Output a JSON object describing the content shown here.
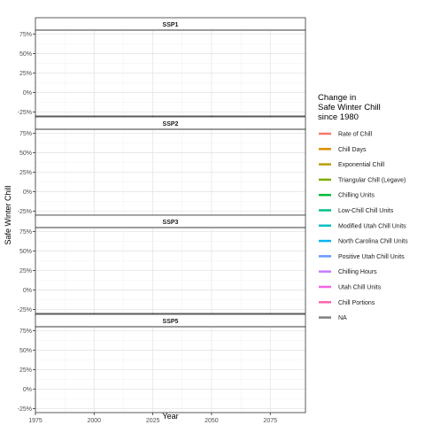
{
  "chart_data": {
    "type": "line",
    "facets": [
      "SSP1",
      "SSP2",
      "SSP3",
      "SSP5"
    ],
    "xlabel": "Year",
    "ylabel": "Safe Winter Chill",
    "x_ticks": [
      1975,
      2000,
      2025,
      2050,
      2075
    ],
    "xlim": [
      1975,
      2090
    ],
    "y_ticks": [
      -0.25,
      0,
      0.25,
      0.5,
      0.75
    ],
    "y_tick_labels": [
      "-25%",
      "0%",
      "25%",
      "50%",
      "75%"
    ],
    "ylim": [
      -0.3,
      0.8
    ],
    "grid": true,
    "legend_position": "right",
    "legend_title": [
      "Change in",
      "Safe Winter Chill",
      "since 1980"
    ],
    "series": [
      {
        "name": "Rate of Chill",
        "color": "#F8766D",
        "values": []
      },
      {
        "name": "Chill Days",
        "color": "#DE8C00",
        "values": []
      },
      {
        "name": "Exponential Chill",
        "color": "#B79F00",
        "values": []
      },
      {
        "name": "Triangular Chill (Legave)",
        "color": "#7CAE00",
        "values": []
      },
      {
        "name": "Chilling Units",
        "color": "#00BA38",
        "values": []
      },
      {
        "name": "Low-Chill Chill Units",
        "color": "#00C08B",
        "values": []
      },
      {
        "name": "Modified Utah Chill Units",
        "color": "#00BFC4",
        "values": []
      },
      {
        "name": "North Carolina Chill Units",
        "color": "#00B4F0",
        "values": []
      },
      {
        "name": "Positive Utah Chill Units",
        "color": "#619CFF",
        "values": []
      },
      {
        "name": "Chilling Hours",
        "color": "#C77CFF",
        "values": []
      },
      {
        "name": "Utah Chill Units",
        "color": "#F564E3",
        "values": []
      },
      {
        "name": "Chill Portions",
        "color": "#FF64B0",
        "values": []
      },
      {
        "name": "NA",
        "color": "#7F7F7F",
        "values": []
      }
    ]
  }
}
